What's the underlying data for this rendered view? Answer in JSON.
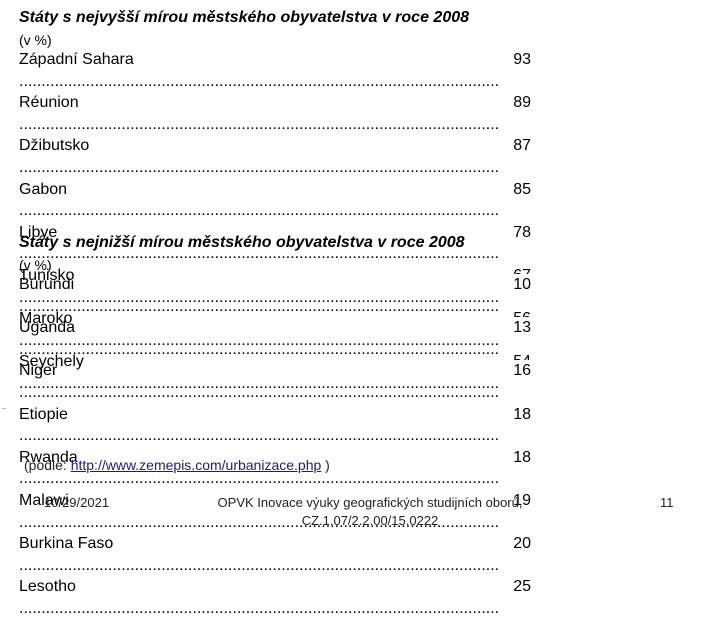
{
  "highest": {
    "title": "Státy s nejvyšší mírou městského obyvatelstva v roce 2008",
    "unit": "(v %)",
    "rows": [
      {
        "name": "Západní Sahara",
        "value": "93"
      },
      {
        "name": "Réunion",
        "value": "89"
      },
      {
        "name": "Džibutsko",
        "value": "87"
      },
      {
        "name": "Gabon",
        "value": "85"
      },
      {
        "name": "Libye",
        "value": "78"
      },
      {
        "name": "Tunisko",
        "value": "67"
      },
      {
        "name": "Maroko",
        "value": "56"
      },
      {
        "name": "Seychely",
        "value": "54"
      }
    ]
  },
  "lowest": {
    "title": "Státy s nejnižší mírou městského obyvatelstva v roce 2008",
    "unit": "(v %)",
    "rows": [
      {
        "name": "Burundi",
        "value": "10"
      },
      {
        "name": "Uganda",
        "value": "13"
      },
      {
        "name": "Niger",
        "value": "16"
      },
      {
        "name": "Etiopie",
        "value": "18"
      },
      {
        "name": "Rwanda",
        "value": "18"
      },
      {
        "name": "Malawi",
        "value": "19"
      },
      {
        "name": "Burkina Faso",
        "value": "20"
      },
      {
        "name": "Lesotho",
        "value": "25"
      }
    ]
  },
  "source": {
    "prefix": "(podle: ",
    "link": "http://www.zemepis.com/urbanizace.php",
    "suffix": " )"
  },
  "footer": {
    "date": "10/29/2021",
    "line1": "OPVK Inovace výuky geografických studijních oborů,",
    "line2": "CZ.1.07/2.2.00/15.0222",
    "page": "11"
  }
}
